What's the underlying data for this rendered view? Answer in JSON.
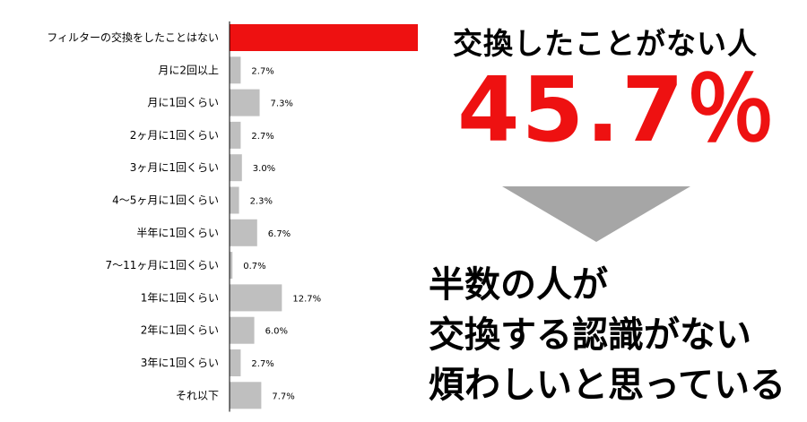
{
  "chart_data": {
    "type": "bar",
    "orientation": "horizontal",
    "categories": [
      "フィルターの交換をしたことはない",
      "月に2回以上",
      "月に1回くらい",
      "2ヶ月に1回くらい",
      "3ヶ月に1回くらい",
      "4〜5ヶ月に1回くらい",
      "半年に1回くらい",
      "7〜11ヶ月に1回くらい",
      "1年に1回くらい",
      "2年に1回くらい",
      "3年に1回くらい",
      "それ以下"
    ],
    "values": [
      45.7,
      2.7,
      7.3,
      2.7,
      3.0,
      2.3,
      6.7,
      0.7,
      12.7,
      6.0,
      2.7,
      7.7
    ],
    "value_labels": [
      "",
      "2.7%",
      "7.3%",
      "2.7%",
      "3.0%",
      "2.3%",
      "6.7%",
      "0.7%",
      "12.7%",
      "6.0%",
      "2.7%",
      "7.7%"
    ],
    "highlight_index": 0,
    "unit": "%",
    "title": "",
    "xlabel": "",
    "ylabel": "",
    "grid": false,
    "colors": {
      "highlight": "#ee1111",
      "bar": "#bfbfbf",
      "axis": "#000000"
    }
  },
  "callout": {
    "headline": "交換したことがない人",
    "big_value": "45.7％",
    "arrow_color": "#a6a6a6",
    "accent_color": "#ee1111",
    "conclusion_lines": [
      "半数の人が",
      "交換する認識がない",
      "煩わしいと思っている"
    ]
  }
}
